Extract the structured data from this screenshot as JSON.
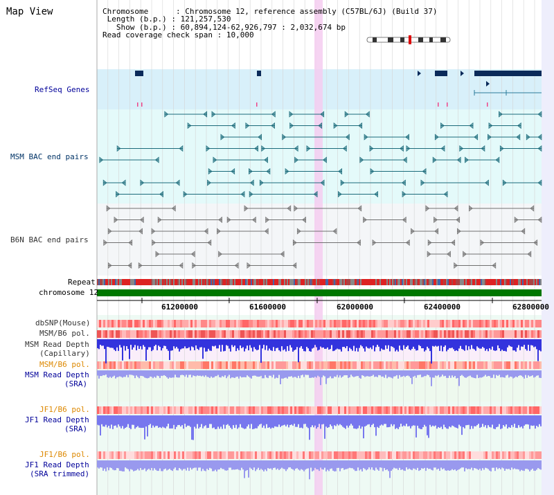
{
  "view": {
    "title": "Map View"
  },
  "info": {
    "chromosome_key": "Chromosome     ",
    "chromosome_value": "Chromosome 12, reference assembly (C57BL/6J) (Build 37)",
    "length_key": "Length (b.p.) ",
    "length_value": "121,257,530",
    "show_key": " Show (b.p.) ",
    "show_value": "60,894,124-62,926,797 : 2,032,674 bp",
    "coverage_key": "Read coverage check span",
    "coverage_value": "10,000"
  },
  "tracks": {
    "refseq": "RefSeq Genes",
    "msm_bac": "MSM BAC end pairs",
    "b6n_bac": "B6N BAC end pairs",
    "repeat": "Repeat",
    "chromosome": "chromosome 12",
    "dbsnp": "dbSNP(Mouse)",
    "msm_b6_pol": "MSM/B6 pol.",
    "msm_depth_cap_1": "MSM Read Depth",
    "msm_depth_cap_2": "(Capillary)",
    "msm_b6_pol_2": "MSM/B6 pol.",
    "msm_depth_sra_1": "MSM Read Depth",
    "msm_depth_sra_2": "(SRA)",
    "jf1_b6_pol": "JF1/B6 pol.",
    "jf1_depth_sra_1": "JF1 Read Depth",
    "jf1_depth_sra_2": "(SRA)",
    "jf1_b6_pol_2": "JF1/B6 pol.",
    "jf1_depth_trim_1": "JF1 Read Depth",
    "jf1_depth_trim_2": "(SRA trimmed)"
  },
  "axis": {
    "ticks": [
      "61200000",
      "61600000",
      "62000000",
      "62400000",
      "62800000"
    ],
    "range": [
      60894124,
      62926797
    ]
  },
  "colors": {
    "refseq_bg": "#d8f0fa",
    "bac_bg": "#e4fafa",
    "gene": "#0a2a5a",
    "msm_bac": "#1a6a7a",
    "b6n_bac": "#707070",
    "chromosome": "#007700",
    "highlight": "#f5ccf0",
    "msm_label": "#003366",
    "sra_label": "#000099",
    "pol_label": "#dd8800"
  }
}
